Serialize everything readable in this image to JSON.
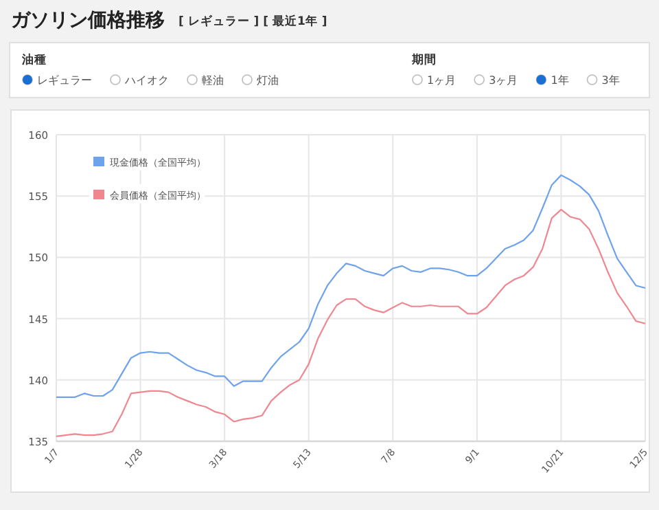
{
  "chart_data": {
    "type": "line",
    "title": "ガソリン価格推移",
    "subtitle": "[ レギュラー ] [ 最近1年 ]",
    "annotations": [
      "油種",
      "レギュラー",
      "ハイオク",
      "軽油",
      "灯油",
      "期間",
      "1ヶ月",
      "3ヶ月",
      "1年",
      "3年"
    ],
    "categories": [
      "1/7",
      null,
      null,
      null,
      null,
      null,
      null,
      null,
      null,
      "1/28",
      null,
      null,
      null,
      null,
      null,
      null,
      null,
      null,
      "3/18",
      null,
      null,
      null,
      null,
      null,
      null,
      null,
      null,
      "5/13",
      null,
      null,
      null,
      null,
      null,
      null,
      null,
      null,
      "7/8",
      null,
      null,
      null,
      null,
      null,
      null,
      null,
      null,
      "9/1",
      null,
      null,
      null,
      null,
      null,
      null,
      null,
      null,
      "10/21",
      null,
      null,
      null,
      null,
      null,
      null,
      null,
      null,
      "12/5"
    ],
    "series": [
      {
        "name": "現金価格（全国平均）",
        "color": "#6ea2ea",
        "values": [
          138.6,
          138.6,
          138.6,
          138.9,
          138.7,
          138.7,
          139.2,
          140.5,
          141.8,
          142.2,
          142.3,
          142.2,
          142.2,
          141.7,
          141.2,
          140.8,
          140.6,
          140.3,
          140.3,
          139.5,
          139.9,
          139.9,
          139.9,
          141.0,
          141.9,
          142.5,
          143.1,
          144.2,
          146.2,
          147.7,
          148.7,
          149.5,
          149.3,
          148.9,
          148.7,
          148.5,
          149.1,
          149.3,
          148.9,
          148.8,
          149.1,
          149.1,
          149.0,
          148.8,
          148.5,
          148.5,
          149.1,
          149.9,
          150.7,
          151.0,
          151.4,
          152.2,
          154.0,
          155.9,
          156.7,
          156.3,
          155.8,
          155.1,
          153.8,
          151.8,
          149.9,
          148.8,
          147.7,
          147.5
        ]
      },
      {
        "name": "会員価格（全国平均）",
        "color": "#ef8790",
        "values": [
          135.4,
          135.5,
          135.6,
          135.5,
          135.5,
          135.6,
          135.8,
          137.2,
          138.9,
          139.0,
          139.1,
          139.1,
          139.0,
          138.6,
          138.3,
          138.0,
          137.8,
          137.4,
          137.2,
          136.6,
          136.8,
          136.9,
          137.1,
          138.3,
          139.0,
          139.6,
          140.0,
          141.3,
          143.4,
          144.9,
          146.1,
          146.6,
          146.6,
          146.0,
          145.7,
          145.5,
          145.9,
          146.3,
          146.0,
          146.0,
          146.1,
          146.0,
          146.0,
          146.0,
          145.4,
          145.4,
          145.9,
          146.8,
          147.7,
          148.2,
          148.5,
          149.2,
          150.7,
          153.2,
          153.9,
          153.3,
          153.1,
          152.3,
          150.7,
          148.8,
          147.1,
          146.0,
          144.8,
          144.6
        ]
      }
    ],
    "ylim": [
      135,
      160
    ],
    "yticks": [
      135,
      140,
      145,
      150,
      155,
      160
    ],
    "grid": true,
    "legend": "top left",
    "marker": "none",
    "line_style": "solid"
  }
}
